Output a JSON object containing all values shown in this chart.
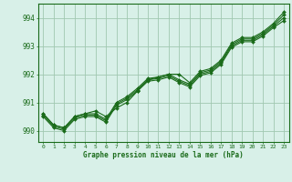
{
  "title": "Graphe pression niveau de la mer (hPa)",
  "bg_color": "#d8f0e8",
  "grid_color": "#a0c8b0",
  "line_color": "#1a6b1a",
  "xlim": [
    -0.5,
    23.5
  ],
  "ylim": [
    989.6,
    994.5
  ],
  "yticks": [
    990,
    991,
    992,
    993,
    994
  ],
  "xtick_labels": [
    "0",
    "1",
    "2",
    "3",
    "4",
    "5",
    "6",
    "7",
    "8",
    "9",
    "10",
    "11",
    "12",
    "13",
    "14",
    "15",
    "16",
    "17",
    "18",
    "19",
    "20",
    "21",
    "22",
    "23"
  ],
  "series": [
    [
      990.6,
      990.2,
      990.1,
      990.5,
      990.6,
      990.7,
      990.5,
      990.8,
      991.0,
      991.4,
      991.8,
      991.9,
      992.0,
      992.0,
      991.7,
      992.1,
      992.2,
      992.5,
      993.1,
      993.3,
      993.3,
      993.5,
      993.8,
      994.2
    ],
    [
      990.6,
      990.2,
      990.1,
      990.5,
      990.6,
      990.6,
      990.4,
      991.0,
      991.2,
      991.5,
      991.85,
      991.9,
      992.0,
      991.8,
      991.65,
      992.05,
      992.15,
      992.45,
      993.05,
      993.25,
      993.25,
      993.45,
      993.75,
      994.1
    ],
    [
      990.55,
      990.15,
      990.05,
      990.45,
      990.55,
      990.55,
      990.35,
      990.95,
      991.15,
      991.45,
      991.8,
      991.85,
      991.95,
      991.75,
      991.6,
      992.0,
      992.1,
      992.4,
      993.0,
      993.2,
      993.2,
      993.4,
      993.7,
      994.0
    ],
    [
      990.5,
      990.1,
      990.0,
      990.4,
      990.5,
      990.5,
      990.3,
      990.9,
      991.1,
      991.4,
      991.75,
      991.8,
      991.9,
      991.7,
      991.55,
      991.95,
      992.05,
      992.35,
      992.95,
      993.15,
      993.15,
      993.35,
      993.65,
      993.9
    ]
  ]
}
